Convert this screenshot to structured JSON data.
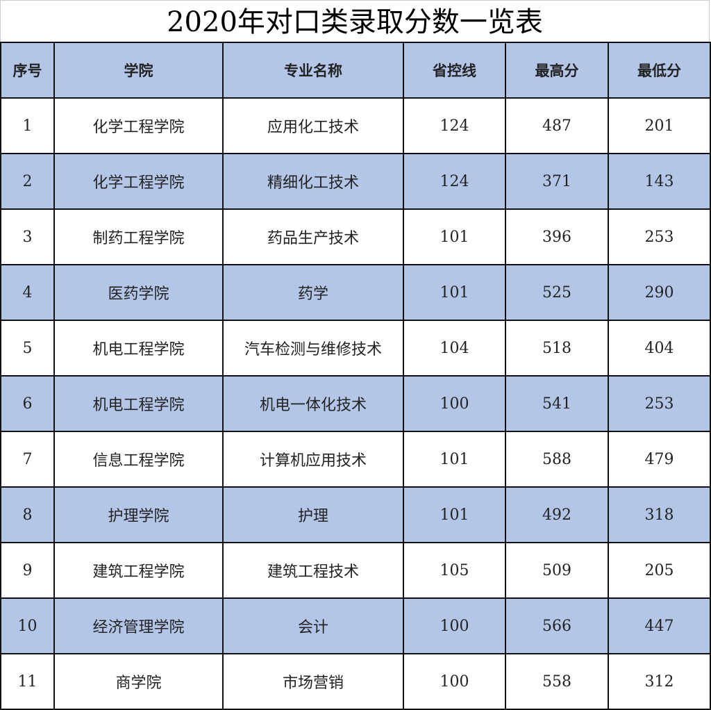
{
  "title": "2020年对口类录取分数一览表",
  "colors": {
    "header_bg": "#b4c6e7",
    "alt_row_bg": "#b4c6e7"
  },
  "headers": [
    "序号",
    "学院",
    "专业名称",
    "省控线",
    "最高分",
    "最低分"
  ],
  "rows": [
    [
      "1",
      "化学工程学院",
      "应用化工技术",
      "124",
      "487",
      "201"
    ],
    [
      "2",
      "化学工程学院",
      "精细化工技术",
      "124",
      "371",
      "143"
    ],
    [
      "3",
      "制药工程学院",
      "药品生产技术",
      "101",
      "396",
      "253"
    ],
    [
      "4",
      "医药学院",
      "药学",
      "101",
      "525",
      "290"
    ],
    [
      "5",
      "机电工程学院",
      "汽车检测与维修技术",
      "104",
      "518",
      "404"
    ],
    [
      "6",
      "机电工程学院",
      "机电一体化技术",
      "100",
      "541",
      "253"
    ],
    [
      "7",
      "信息工程学院",
      "计算机应用技术",
      "101",
      "588",
      "479"
    ],
    [
      "8",
      "护理学院",
      "护理",
      "101",
      "492",
      "318"
    ],
    [
      "9",
      "建筑工程学院",
      "建筑工程技术",
      "105",
      "509",
      "205"
    ],
    [
      "10",
      "经济管理学院",
      "会计",
      "100",
      "566",
      "447"
    ],
    [
      "11",
      "商学院",
      "市场营销",
      "100",
      "558",
      "312"
    ]
  ]
}
